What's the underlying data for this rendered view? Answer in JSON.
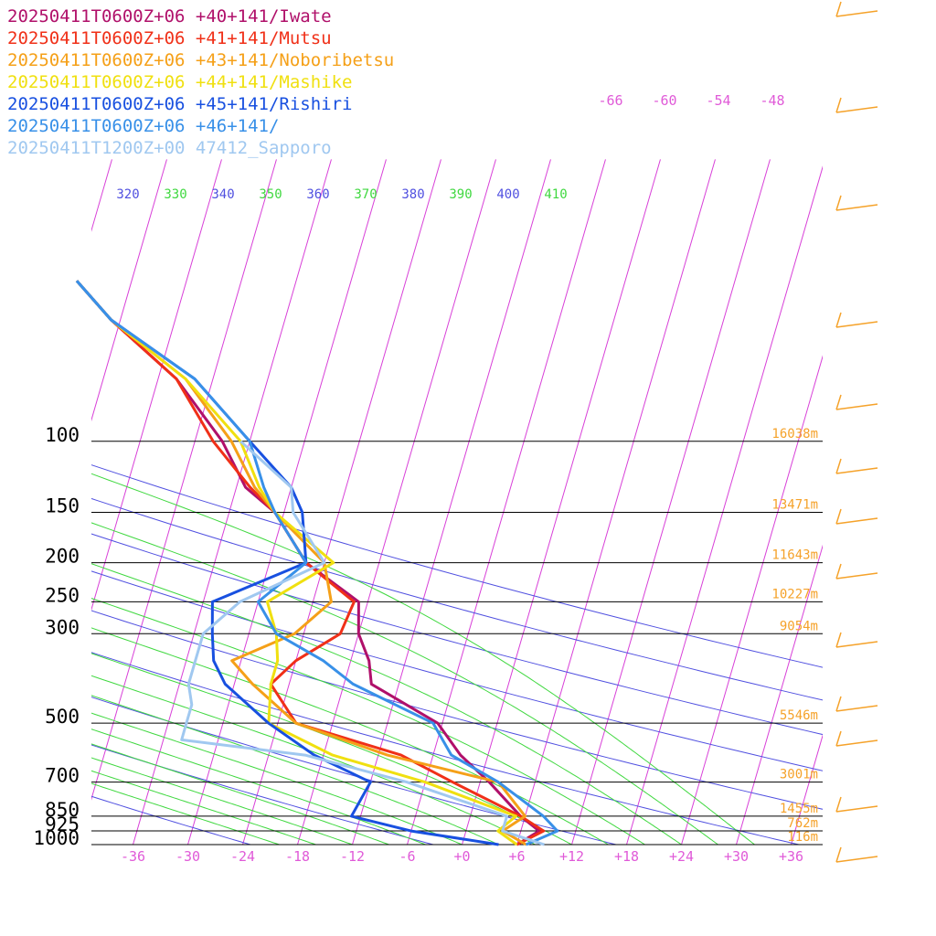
{
  "chart_data": {
    "type": "line",
    "title": "",
    "xlabel": "",
    "ylabel": "",
    "x_ticks": [
      "-36",
      "-30",
      "-24",
      "-18",
      "-12",
      "-6",
      "+0",
      "+6",
      "+12",
      "+18",
      "+24",
      "+30",
      "+36"
    ],
    "x_tick_values": [
      -36,
      -30,
      -24,
      -18,
      -12,
      -6,
      0,
      6,
      12,
      18,
      24,
      30,
      36
    ],
    "pressure_levels": [
      {
        "label": "100",
        "p": 100,
        "height": "16038m"
      },
      {
        "label": "150",
        "p": 150,
        "height": "13471m"
      },
      {
        "label": "200",
        "p": 200,
        "height": "11643m"
      },
      {
        "label": "250",
        "p": 250,
        "height": "10227m"
      },
      {
        "label": "300",
        "p": 300,
        "height": "9054m"
      },
      {
        "label": "500",
        "p": 500,
        "height": "5546m"
      },
      {
        "label": "700",
        "p": 700,
        "height": "3001m"
      },
      {
        "label": "850",
        "p": 850,
        "height": "1455m"
      },
      {
        "label": "925",
        "p": 925,
        "height": "762m"
      },
      {
        "label": "1000",
        "p": 1000,
        "height": "116m"
      }
    ],
    "theta_labels": [
      {
        "label": "320",
        "color": "#5050e0"
      },
      {
        "label": "330",
        "color": "#40d840"
      },
      {
        "label": "340",
        "color": "#5050e0"
      },
      {
        "label": "350",
        "color": "#40d840"
      },
      {
        "label": "360",
        "color": "#5050e0"
      },
      {
        "label": "370",
        "color": "#40d840"
      },
      {
        "label": "380",
        "color": "#5050e0"
      },
      {
        "label": "390",
        "color": "#40d840"
      },
      {
        "label": "400",
        "color": "#5050e0"
      },
      {
        "label": "410",
        "color": "#40d840"
      }
    ],
    "upper_labels": [
      "-66",
      "-60",
      "-54",
      "-48"
    ],
    "colors": {
      "isotherm": "#d840d8",
      "dry_adiabat": "#5050e0",
      "moist_adiabat": "#40d840",
      "isobar": "#000000",
      "height_label": "#f5a22a",
      "tick_label": "#e05ad8",
      "wind_barb": "#f5a22a"
    },
    "series": [
      {
        "name": "20250411T0600Z+06 +40+141/Iwate",
        "color": "#b0106a",
        "points": [
          [
            1000,
            6
          ],
          [
            925,
            8
          ],
          [
            850,
            5.5
          ],
          [
            700,
            1
          ],
          [
            600,
            -3
          ],
          [
            500,
            -6.5
          ],
          [
            400,
            -15
          ],
          [
            350,
            -16
          ],
          [
            300,
            -18
          ],
          [
            250,
            -19
          ],
          [
            200,
            -26
          ],
          [
            150,
            -31
          ],
          [
            130,
            -35
          ],
          [
            100,
            -39
          ],
          [
            70,
            -46
          ],
          [
            50,
            -55
          ],
          [
            40,
            -60
          ]
        ]
      },
      {
        "name": "20250411T0600Z+06 +41+141/Mutsu",
        "color": "#f03018",
        "points": [
          [
            1000,
            6
          ],
          [
            925,
            8.5
          ],
          [
            850,
            5.5
          ],
          [
            700,
            -3
          ],
          [
            600,
            -9.5
          ],
          [
            500,
            -22
          ],
          [
            400,
            -26
          ],
          [
            350,
            -24
          ],
          [
            300,
            -20
          ],
          [
            250,
            -19.5
          ],
          [
            200,
            -26
          ],
          [
            150,
            -31
          ],
          [
            130,
            -34.5
          ],
          [
            100,
            -40
          ],
          [
            70,
            -46
          ],
          [
            50,
            -55
          ],
          [
            40,
            -60
          ]
        ]
      },
      {
        "name": "20250411T0600Z+06 +43+141/Noboribetsu",
        "color": "#f5a018",
        "points": [
          [
            1000,
            7
          ],
          [
            925,
            4
          ],
          [
            850,
            6
          ],
          [
            700,
            2
          ],
          [
            600,
            -11
          ],
          [
            500,
            -22
          ],
          [
            400,
            -28
          ],
          [
            350,
            -31
          ],
          [
            300,
            -25
          ],
          [
            250,
            -22
          ],
          [
            200,
            -24
          ],
          [
            150,
            -31
          ],
          [
            130,
            -34
          ],
          [
            100,
            -38
          ],
          [
            70,
            -45
          ],
          [
            50,
            -55
          ],
          [
            40,
            -60
          ]
        ]
      },
      {
        "name": "20250411T0600Z+06 +44+141/Mashike",
        "color": "#f0e010",
        "points": [
          [
            1000,
            6
          ],
          [
            925,
            3.5
          ],
          [
            850,
            5
          ],
          [
            700,
            -6
          ],
          [
            600,
            -17
          ],
          [
            500,
            -25
          ],
          [
            400,
            -26
          ],
          [
            350,
            -26
          ],
          [
            300,
            -27
          ],
          [
            250,
            -29
          ],
          [
            200,
            -23
          ],
          [
            150,
            -31
          ],
          [
            130,
            -33.5
          ],
          [
            100,
            -37
          ],
          [
            70,
            -45
          ],
          [
            50,
            -55
          ],
          [
            40,
            -60
          ]
        ]
      },
      {
        "name": "20250411T0600Z+06 +45+141/Rishiri",
        "color": "#1850e0",
        "points": [
          [
            1000,
            4
          ],
          [
            925,
            -6
          ],
          [
            850,
            -13
          ],
          [
            700,
            -12
          ],
          [
            600,
            -19
          ],
          [
            500,
            -25
          ],
          [
            400,
            -31
          ],
          [
            350,
            -33
          ],
          [
            300,
            -34
          ],
          [
            250,
            -35
          ],
          [
            200,
            -26
          ],
          [
            150,
            -28
          ],
          [
            130,
            -30
          ],
          [
            100,
            -36
          ],
          [
            70,
            -44
          ],
          [
            50,
            -55
          ],
          [
            40,
            -60
          ]
        ]
      },
      {
        "name": "20250411T0600Z+06 +46+141/",
        "color": "#3890e8",
        "points": [
          [
            1000,
            7
          ],
          [
            925,
            10
          ],
          [
            850,
            8
          ],
          [
            700,
            2
          ],
          [
            600,
            -4
          ],
          [
            500,
            -7
          ],
          [
            400,
            -17
          ],
          [
            350,
            -21
          ],
          [
            300,
            -27
          ],
          [
            250,
            -30
          ],
          [
            200,
            -26
          ],
          [
            150,
            -31
          ],
          [
            130,
            -33
          ],
          [
            100,
            -36
          ],
          [
            70,
            -44
          ],
          [
            50,
            -55
          ],
          [
            40,
            -60
          ]
        ]
      },
      {
        "name": "20250411T1200Z+00 47412_Sapporo",
        "color": "#a0c8f0",
        "points": [
          [
            1000,
            9
          ],
          [
            925,
            4
          ],
          [
            850,
            4
          ],
          [
            700,
            -8
          ],
          [
            600,
            -20
          ],
          [
            550,
            -34
          ],
          [
            500,
            -34
          ],
          [
            450,
            -34
          ],
          [
            400,
            -35
          ],
          [
            350,
            -35
          ],
          [
            300,
            -35
          ],
          [
            250,
            -32
          ],
          [
            200,
            -24
          ],
          [
            150,
            -29
          ],
          [
            130,
            -30
          ],
          [
            100,
            -37
          ]
        ]
      }
    ]
  }
}
